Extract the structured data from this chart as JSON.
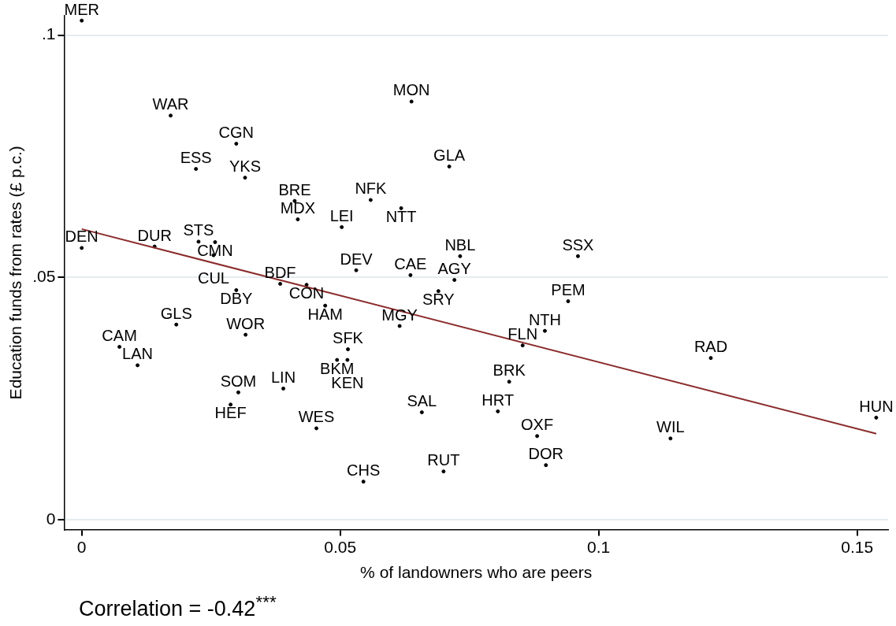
{
  "chart_data": {
    "type": "scatter",
    "xlabel": "% of landowners who are peers",
    "ylabel": "Education funds from rates (£ p.c.)",
    "xlim": [
      -0.0034,
      0.156
    ],
    "xticks": [
      0,
      0.05,
      0.1,
      0.15
    ],
    "ylim": [
      -0.002,
      0.104
    ],
    "yticks": [
      0,
      {
        "value": 0.05,
        "label": ".05"
      },
      {
        "value": 0.1,
        "label": ".1"
      }
    ],
    "grid": "y",
    "legend": false,
    "series": [
      {
        "color": "#000000",
        "marker": "circle",
        "x": [
          0.0,
          0.0172,
          0.0299,
          0.0221,
          0.0316,
          0.0638,
          0.0711,
          0.0412,
          0.0559,
          0.0618,
          0.0418,
          0.0503,
          0.0,
          0.0141,
          0.0226,
          0.0258,
          0.0255,
          0.0732,
          0.096,
          0.0531,
          0.0636,
          0.0721,
          0.069,
          0.0384,
          0.0435,
          0.0299,
          0.0471,
          0.0941,
          0.0183,
          0.0615,
          0.0317,
          0.0896,
          0.0853,
          0.0073,
          0.0515,
          0.0494,
          0.0514,
          0.1217,
          0.0108,
          0.0827,
          0.039,
          0.0303,
          0.0288,
          0.0658,
          0.0805,
          0.1537,
          0.0454,
          0.0881,
          0.1139,
          0.0898,
          0.07,
          0.0545
        ],
        "values": [
          0.103,
          0.0834,
          0.0776,
          0.0724,
          0.0706,
          0.0863,
          0.0729,
          0.0658,
          0.066,
          0.0643,
          0.062,
          0.0604,
          0.0561,
          0.0564,
          0.0574,
          0.0573,
          0.0546,
          0.0544,
          0.0544,
          0.0515,
          0.0505,
          0.0495,
          0.0472,
          0.0487,
          0.0485,
          0.0474,
          0.0442,
          0.0451,
          0.0403,
          0.04,
          0.0382,
          0.039,
          0.036,
          0.0357,
          0.0352,
          0.033,
          0.033,
          0.0334,
          0.0319,
          0.0285,
          0.0271,
          0.0263,
          0.0238,
          0.0222,
          0.0224,
          0.0211,
          0.0189,
          0.0173,
          0.0168,
          0.0113,
          0.01,
          0.0079
        ],
        "value_labels": [
          "MER",
          "WAR",
          "CGN",
          "ESS",
          "YKS",
          "MON",
          "GLA",
          "BRE",
          "NFK",
          "NTT",
          "MDX",
          "LEI",
          "DEN",
          "DUR",
          "STS",
          "CMN",
          "CUL",
          "NBL",
          "SSX",
          "DEV",
          "CAE",
          "AGY",
          "SRY",
          "BDF",
          "CON",
          "DBY",
          "HAM",
          "PEM",
          "GLS",
          "MGY",
          "WOR",
          "NTH",
          "FLN",
          "CAM",
          "SFK",
          "BKM",
          "KEN",
          "RAD",
          "LAN",
          "BRK",
          "LIN",
          "SOM",
          "HEF",
          "SAL",
          "HRT",
          "HUN",
          "WES",
          "OXF",
          "WIL",
          "DOR",
          "RUT",
          "CHS"
        ]
      },
      {
        "type": "line",
        "marker": "none",
        "color": "#8b2c2c",
        "x": [
          0,
          0.1537
        ],
        "values": [
          0.06,
          0.0178
        ]
      }
    ],
    "annotations": [
      "Correlation = -0.42$^{***}$"
    ]
  }
}
